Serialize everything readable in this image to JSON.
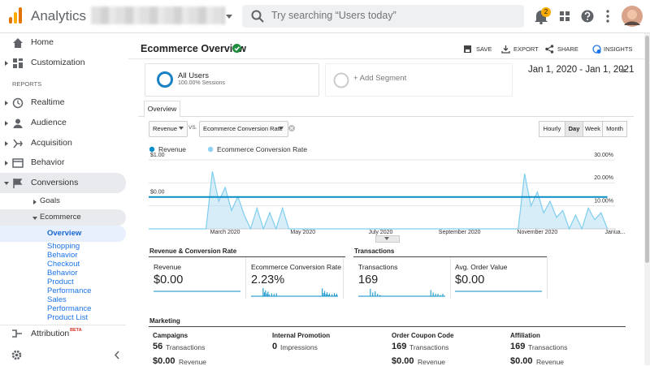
{
  "topbar": {
    "product": "Analytics",
    "search_placeholder": "Try searching “Users today”",
    "notifications": "2"
  },
  "sidebar": {
    "items": [
      "Home",
      "Customization"
    ],
    "section": "REPORTS",
    "reports": [
      "Realtime",
      "Audience",
      "Acquisition",
      "Behavior",
      "Conversions"
    ],
    "conversions": [
      "Goals",
      "Ecommerce"
    ],
    "ecommerce": [
      "Overview",
      "Shopping Behavior",
      "Checkout Behavior",
      "Product Performance",
      "Sales Performance",
      "Product List"
    ],
    "attribution": "Attribution",
    "beta": "BETA"
  },
  "header": {
    "title": "Ecommerce Overview",
    "actions": [
      "SAVE",
      "EXPORT",
      "SHARE",
      "INSIGHTS"
    ]
  },
  "segments": {
    "name": "All Users",
    "detail": "100.00% Sessions",
    "add": "+ Add Segment"
  },
  "date_range": "Jan 1, 2020 - Jan 1, 2021",
  "tab": "Overview",
  "controls": {
    "metric": "Revenue",
    "vs": "VS.",
    "compare": "Ecommerce Conversion Rate",
    "intervals": [
      "Hourly",
      "Day",
      "Week",
      "Month"
    ],
    "selected_interval": 1
  },
  "chart_data": {
    "type": "line",
    "x": [
      0,
      5,
      10,
      15,
      20,
      25,
      30,
      35,
      40,
      45,
      50,
      55,
      60,
      65,
      70,
      75,
      80,
      85,
      90,
      95,
      100,
      105,
      110,
      115,
      120,
      125,
      130,
      135,
      140,
      145,
      150,
      155,
      160,
      165,
      170,
      175,
      180,
      185,
      190,
      195,
      200,
      205,
      210,
      215,
      220,
      225,
      230,
      235,
      240,
      245,
      250,
      255,
      260,
      265,
      270,
      275,
      280,
      285,
      290,
      295,
      300,
      305,
      310,
      315,
      320,
      325,
      330,
      335,
      340,
      345,
      350,
      355,
      360
    ],
    "xlim": [
      0,
      366
    ],
    "xticks": [
      {
        "value": 60,
        "label": "March 2020"
      },
      {
        "value": 121,
        "label": "May 2020"
      },
      {
        "value": 182,
        "label": "July 2020"
      },
      {
        "value": 244,
        "label": "September 2020"
      },
      {
        "value": 305,
        "label": "November 2020"
      },
      {
        "value": 366,
        "label": "Janua..."
      }
    ],
    "ylim": [
      -0.86,
      1
    ],
    "yticks": [
      {
        "value": 1,
        "label": "$1.00"
      },
      {
        "value": 0,
        "label": "$0.00"
      }
    ],
    "y2lim": [
      0,
      30
    ],
    "y2ticks": [
      {
        "value": 30,
        "label": "30.00%"
      },
      {
        "value": 20,
        "label": "20.00%"
      },
      {
        "value": 10,
        "label": "10.00%"
      }
    ],
    "grid": true,
    "series": [
      {
        "name": "Revenue",
        "color": "#058dc7",
        "values": [
          0,
          0,
          0,
          0,
          0,
          0,
          0,
          0,
          0,
          0,
          0,
          0,
          0,
          0,
          0,
          0,
          0,
          0,
          0,
          0,
          0,
          0,
          0,
          0,
          0,
          0,
          0,
          0,
          0,
          0,
          0,
          0,
          0,
          0,
          0,
          0,
          0,
          0,
          0,
          0,
          0,
          0,
          0,
          0,
          0,
          0,
          0,
          0,
          0,
          0,
          0,
          0,
          0,
          0,
          0,
          0,
          0,
          0,
          0,
          0,
          0,
          0,
          0,
          0,
          0,
          0,
          0,
          0,
          0,
          0,
          0,
          0,
          0
        ]
      },
      {
        "name": "Ecommerce Conversion Rate",
        "color": "#a6daf2",
        "axis": "y2",
        "values": [
          0,
          0,
          0,
          0,
          0,
          0,
          0,
          0,
          0,
          0,
          25,
          12,
          18,
          8,
          14,
          6,
          0,
          9,
          0,
          7,
          0,
          9,
          0,
          0,
          0,
          0,
          0,
          0,
          0,
          0,
          0,
          0,
          0,
          0,
          0,
          0,
          0,
          0,
          0,
          0,
          0,
          0,
          0,
          0,
          0,
          0,
          0,
          0,
          0,
          0,
          0,
          0,
          0,
          0,
          0,
          0,
          0,
          0,
          0,
          24,
          10,
          16,
          7,
          12,
          5,
          8,
          0,
          6,
          0,
          9,
          4,
          7,
          0
        ]
      }
    ]
  },
  "summary": {
    "sections": [
      "Revenue & Conversion Rate",
      "Transactions"
    ],
    "cards": [
      {
        "label": "Revenue",
        "value": "$0.00"
      },
      {
        "label": "Ecommerce Conversion Rate",
        "value": "2.23%"
      },
      {
        "label": "Transactions",
        "value": "169",
        "trend": [
          0,
          0,
          0,
          0,
          0,
          6,
          3,
          4,
          2,
          1,
          0,
          0,
          0,
          0,
          0,
          0,
          0,
          0,
          0,
          0,
          0,
          0,
          0,
          0,
          0,
          0,
          0,
          0,
          0,
          0,
          5,
          3,
          2,
          2,
          1,
          2,
          0
        ]
      },
      {
        "label": "Avg. Order Value",
        "value": "$0.00"
      }
    ]
  },
  "marketing": {
    "title": "Marketing",
    "columns": [
      {
        "title": "Campaigns",
        "rows": [
          {
            "value": "56",
            "label": "Transactions"
          },
          {
            "value": "$0.00",
            "label": "Revenue"
          }
        ]
      },
      {
        "title": "Internal Promotion",
        "rows": [
          {
            "value": "0",
            "label": "Impressions"
          }
        ]
      },
      {
        "title": "Order Coupon Code",
        "rows": [
          {
            "value": "169",
            "label": "Transactions"
          },
          {
            "value": "$0.00",
            "label": "Revenue"
          }
        ]
      },
      {
        "title": "Affiliation",
        "rows": [
          {
            "value": "169",
            "label": "Transactions"
          },
          {
            "value": "$0.00",
            "label": "Revenue"
          }
        ]
      }
    ]
  }
}
